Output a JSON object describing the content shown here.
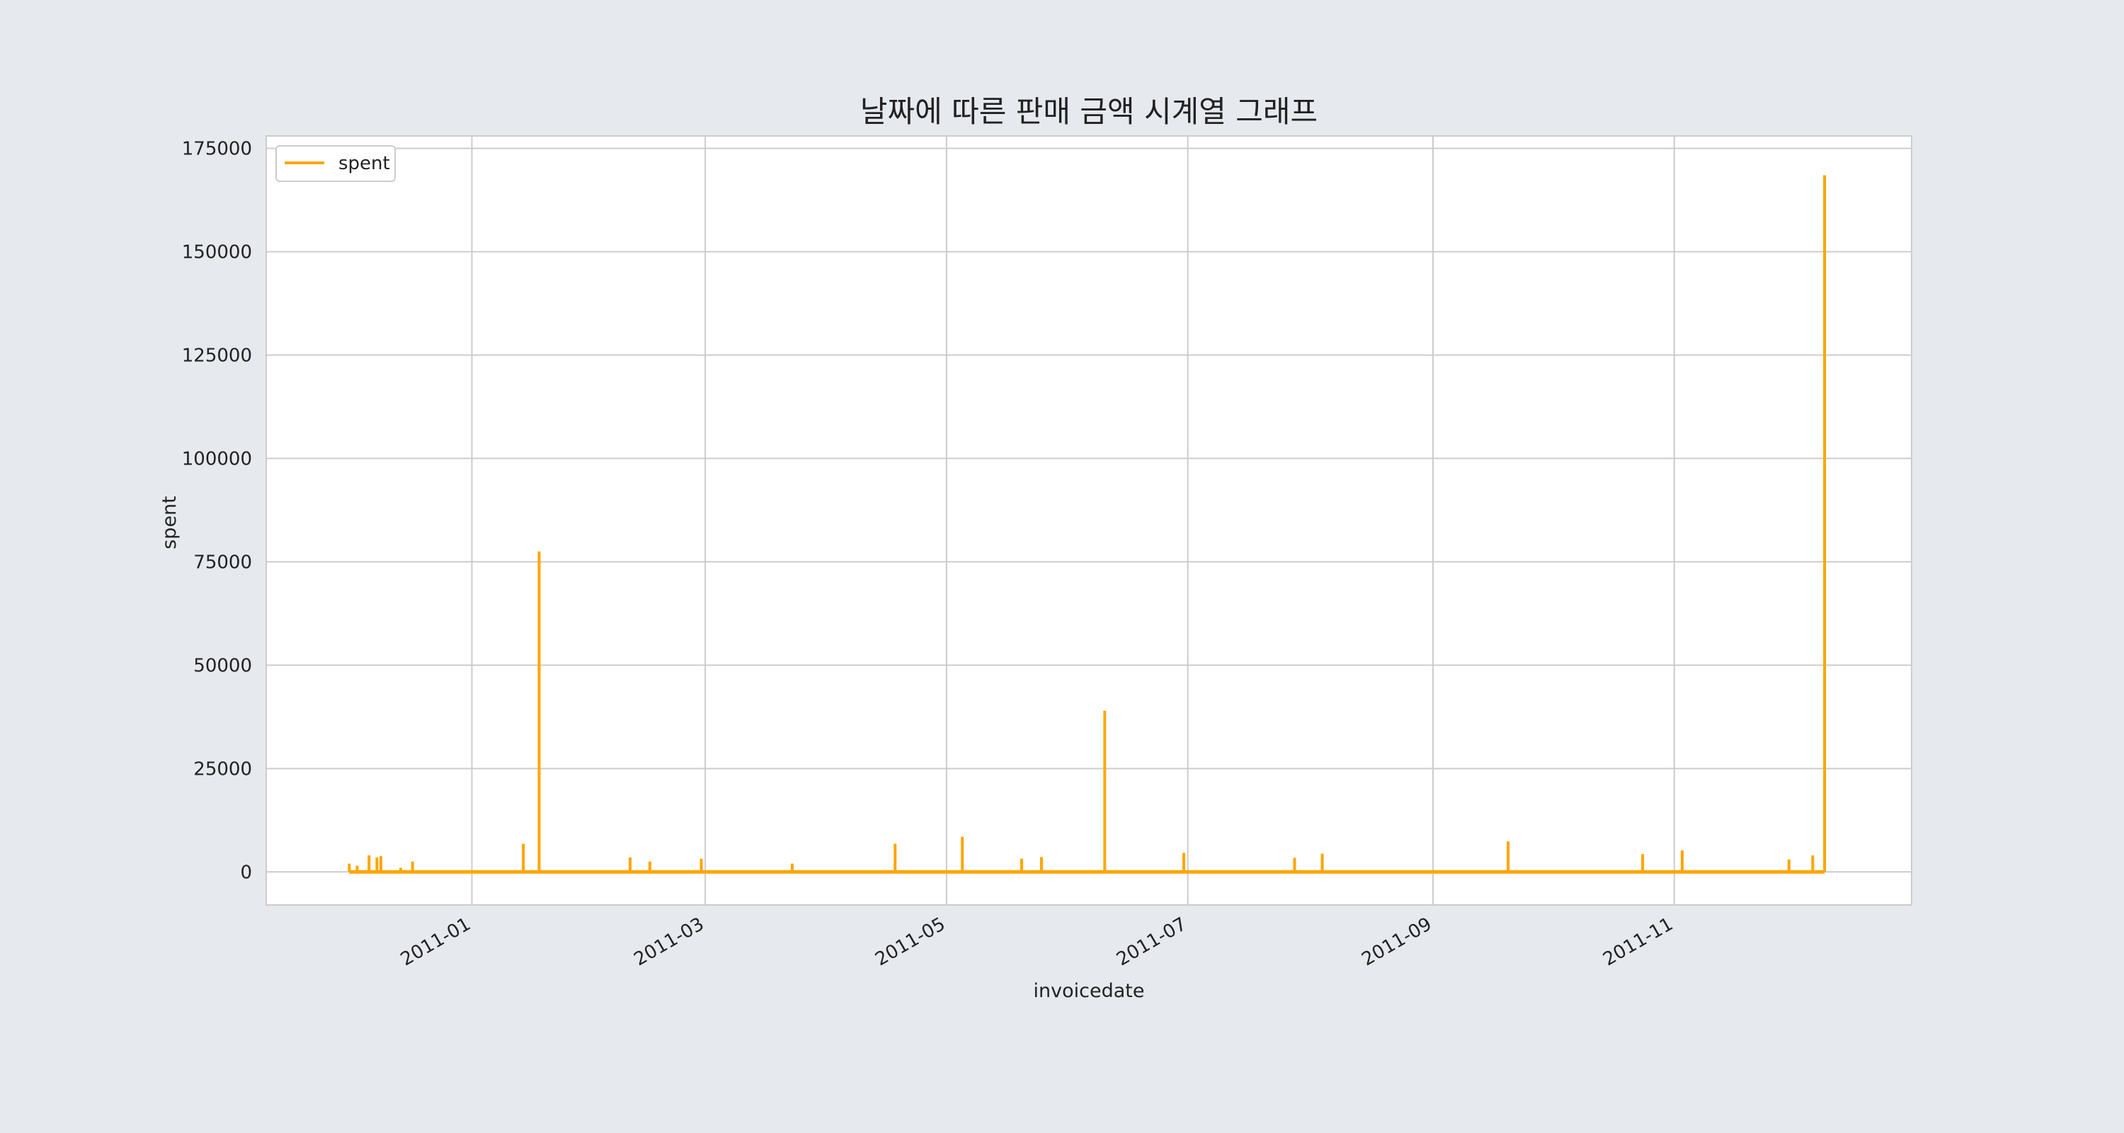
{
  "chart_data": {
    "type": "line",
    "title": "날짜에 따른 판매 금액 시계열 그래프",
    "xlabel": "invoicedate",
    "ylabel": "spent",
    "xlim": [
      "2010-11-10",
      "2011-12-31"
    ],
    "ylim": [
      -8000,
      178000
    ],
    "grid": true,
    "legend": {
      "placement": "top-left",
      "entries": [
        "spent"
      ]
    },
    "x_ticks": [
      "2011-01-01",
      "2011-03-01",
      "2011-05-01",
      "2011-07-01",
      "2011-09-01",
      "2011-11-01"
    ],
    "x_tick_labels": [
      "2011-01",
      "2011-03",
      "2011-05",
      "2011-07",
      "2011-09",
      "2011-11"
    ],
    "y_ticks": [
      0,
      25000,
      50000,
      75000,
      100000,
      125000,
      150000,
      175000
    ],
    "y_tick_labels": [
      "0",
      "25000",
      "50000",
      "75000",
      "100000",
      "125000",
      "150000",
      "175000"
    ],
    "series": [
      {
        "name": "spent",
        "color": "#ffa500",
        "x": [
          "2010-12-01",
          "2010-12-03",
          "2010-12-06",
          "2010-12-08",
          "2010-12-09",
          "2010-12-14",
          "2010-12-17",
          "2011-01-14",
          "2011-01-18",
          "2011-02-10",
          "2011-02-15",
          "2011-02-28",
          "2011-03-23",
          "2011-04-18",
          "2011-05-05",
          "2011-05-20",
          "2011-05-25",
          "2011-06-10",
          "2011-06-30",
          "2011-07-28",
          "2011-08-04",
          "2011-09-20",
          "2011-10-24",
          "2011-11-03",
          "2011-11-30",
          "2011-12-06",
          "2011-12-09"
        ],
        "y": [
          2000,
          1500,
          4000,
          3500,
          3800,
          1000,
          2500,
          6800,
          77500,
          3500,
          2500,
          3200,
          2000,
          6800,
          8500,
          3200,
          3600,
          39000,
          4600,
          3400,
          4400,
          7400,
          4300,
          5200,
          3000,
          4000,
          168500
        ]
      }
    ]
  }
}
